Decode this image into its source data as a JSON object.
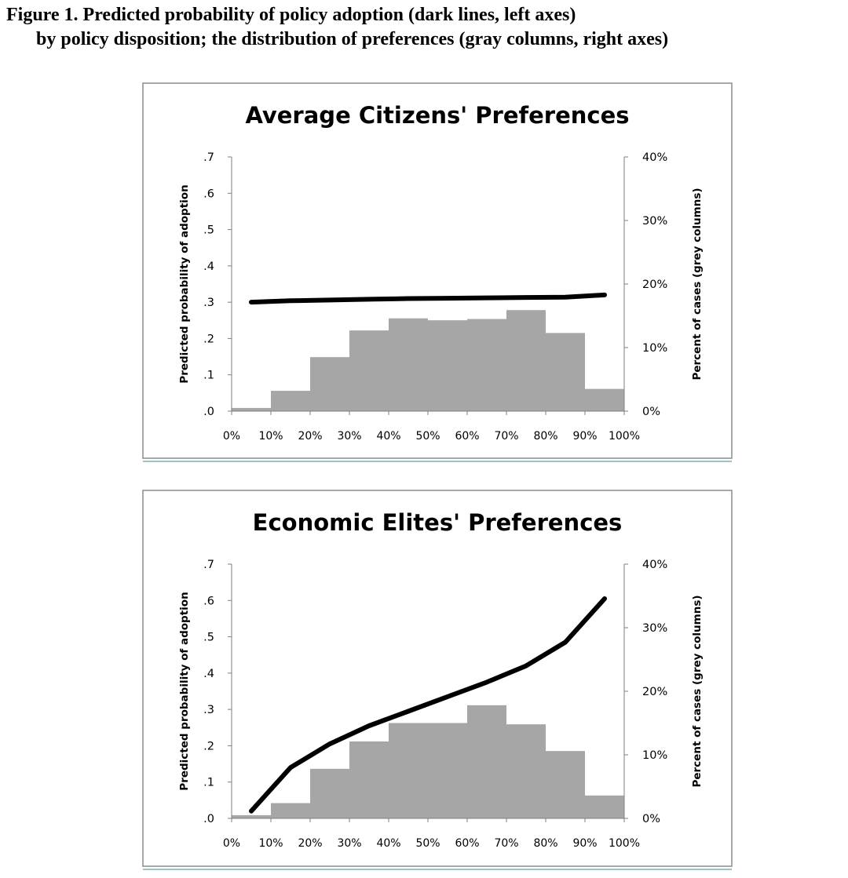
{
  "figure": {
    "caption_line1": "Figure 1. Predicted probability of policy adoption (dark lines, left axes)",
    "caption_line2": "by policy disposition; the distribution of preferences (gray columns, right axes)"
  },
  "colors": {
    "columns": "#a6a6a6",
    "line": "#000000",
    "frame": "#8c8c8c",
    "axis": "#7f7f7f",
    "text": "#000000",
    "underline": "#9dc3c3"
  },
  "chart_data": [
    {
      "type": "bar",
      "title": "Average Citizens' Preferences",
      "ylabel": "Predicted probability of adoption",
      "y2label": "Percent of cases (grey columns)",
      "x_tick_labels": [
        "0%",
        "10%",
        "20%",
        "30%",
        "40%",
        "50%",
        "60%",
        "70%",
        "80%",
        "90%",
        "100%"
      ],
      "y_tick_labels": [
        ".0",
        ".1",
        ".2",
        ".3",
        ".4",
        ".5",
        ".6",
        ".7"
      ],
      "y2_tick_labels": [
        "0%",
        "10%",
        "20%",
        "30%",
        "40%"
      ],
      "ylim": [
        0,
        0.7
      ],
      "y2lim": [
        0,
        40
      ],
      "grid": false,
      "columns": {
        "bins": [
          "0-10%",
          "10-20%",
          "20-30%",
          "30-40%",
          "40-50%",
          "50-60%",
          "60-70%",
          "70-80%",
          "80-90%",
          "90-100%"
        ],
        "values": [
          0.5,
          3.2,
          8.5,
          12.7,
          14.6,
          14.3,
          14.5,
          15.9,
          12.3,
          3.5
        ]
      },
      "line": {
        "x": [
          5,
          15,
          25,
          35,
          45,
          55,
          65,
          75,
          85,
          95
        ],
        "y": [
          0.3,
          0.304,
          0.306,
          0.308,
          0.31,
          0.311,
          0.312,
          0.313,
          0.314,
          0.32
        ]
      }
    },
    {
      "type": "bar",
      "title": "Economic Elites' Preferences",
      "ylabel": "Predicted probability of adoption",
      "y2label": "Percent of cases (grey columns)",
      "x_tick_labels": [
        "0%",
        "10%",
        "20%",
        "30%",
        "40%",
        "50%",
        "60%",
        "70%",
        "80%",
        "90%",
        "100%"
      ],
      "y_tick_labels": [
        ".0",
        ".1",
        ".2",
        ".3",
        ".4",
        ".5",
        ".6",
        ".7"
      ],
      "y2_tick_labels": [
        "0%",
        "10%",
        "20%",
        "30%",
        "40%"
      ],
      "ylim": [
        0,
        0.7
      ],
      "y2lim": [
        0,
        40
      ],
      "grid": false,
      "columns": {
        "bins": [
          "0-10%",
          "10-20%",
          "20-30%",
          "30-40%",
          "40-50%",
          "50-60%",
          "60-70%",
          "70-80%",
          "80-90%",
          "90-100%"
        ],
        "values": [
          0.5,
          2.4,
          7.8,
          12.1,
          15.0,
          15.0,
          17.8,
          14.8,
          10.6,
          3.6
        ]
      },
      "line": {
        "x": [
          5,
          15,
          25,
          35,
          45,
          55,
          65,
          75,
          85,
          95
        ],
        "y": [
          0.02,
          0.14,
          0.205,
          0.255,
          0.295,
          0.335,
          0.375,
          0.42,
          0.485,
          0.605
        ]
      }
    }
  ]
}
